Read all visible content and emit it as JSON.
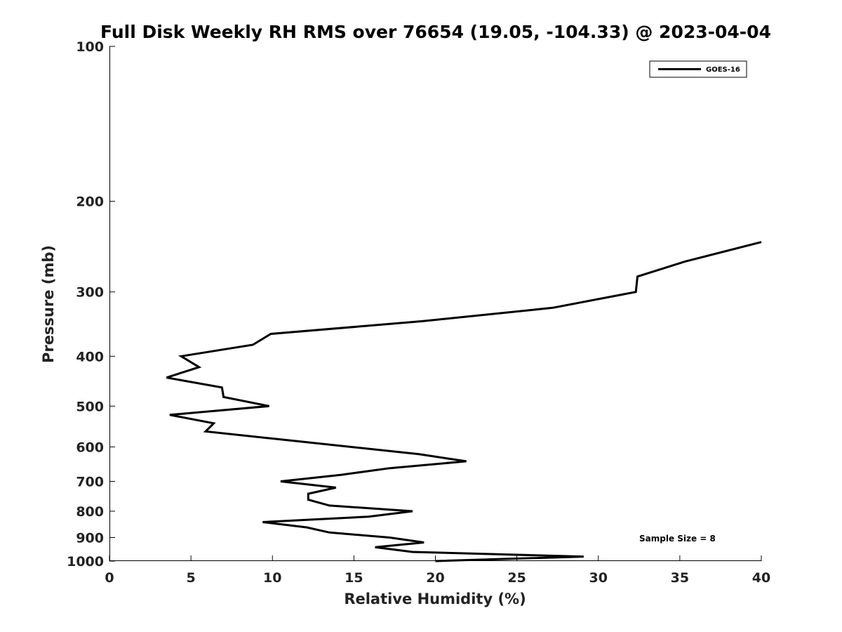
{
  "chart_data": {
    "type": "line",
    "title": "Full Disk Weekly RH RMS over 76654 (19.05, -104.33) @ 2023-04-04",
    "xlabel": "Relative Humidity (%)",
    "ylabel": "Pressure (mb)",
    "xlim": [
      0,
      40
    ],
    "ylim": [
      1000,
      100
    ],
    "yscale": "log",
    "x_ticks": [
      0,
      5,
      10,
      15,
      20,
      25,
      30,
      35,
      40
    ],
    "y_ticks": [
      100,
      200,
      300,
      400,
      500,
      600,
      700,
      800,
      900,
      1000
    ],
    "x_tick_labels": [
      "0",
      "5",
      "10",
      "15",
      "20",
      "25",
      "30",
      "35",
      "40"
    ],
    "y_tick_labels": [
      "100",
      "200",
      "300",
      "400",
      "500",
      "600",
      "700",
      "800",
      "900",
      "1000"
    ],
    "grid": false,
    "legend_position": "top-right",
    "series": [
      {
        "name": "GOES-16",
        "color": "#000000",
        "points": [
          {
            "x": 40.0,
            "p": 240
          },
          {
            "x": 35.3,
            "p": 262
          },
          {
            "x": 32.4,
            "p": 280
          },
          {
            "x": 32.3,
            "p": 300
          },
          {
            "x": 27.2,
            "p": 322
          },
          {
            "x": 19.2,
            "p": 342
          },
          {
            "x": 9.9,
            "p": 362
          },
          {
            "x": 8.8,
            "p": 380
          },
          {
            "x": 4.4,
            "p": 400
          },
          {
            "x": 5.5,
            "p": 420
          },
          {
            "x": 3.5,
            "p": 440
          },
          {
            "x": 6.9,
            "p": 460
          },
          {
            "x": 7.0,
            "p": 480
          },
          {
            "x": 9.8,
            "p": 500
          },
          {
            "x": 3.7,
            "p": 520
          },
          {
            "x": 6.4,
            "p": 540
          },
          {
            "x": 5.9,
            "p": 560
          },
          {
            "x": 10.0,
            "p": 578
          },
          {
            "x": 19.0,
            "p": 620
          },
          {
            "x": 21.9,
            "p": 640
          },
          {
            "x": 17.2,
            "p": 660
          },
          {
            "x": 14.2,
            "p": 680
          },
          {
            "x": 10.5,
            "p": 700
          },
          {
            "x": 13.9,
            "p": 720
          },
          {
            "x": 12.2,
            "p": 740
          },
          {
            "x": 12.2,
            "p": 760
          },
          {
            "x": 13.5,
            "p": 780
          },
          {
            "x": 18.6,
            "p": 800
          },
          {
            "x": 15.9,
            "p": 820
          },
          {
            "x": 9.4,
            "p": 840
          },
          {
            "x": 12.1,
            "p": 860
          },
          {
            "x": 13.5,
            "p": 880
          },
          {
            "x": 17.2,
            "p": 900
          },
          {
            "x": 19.3,
            "p": 920
          },
          {
            "x": 16.3,
            "p": 940
          },
          {
            "x": 18.6,
            "p": 960
          },
          {
            "x": 29.1,
            "p": 980
          },
          {
            "x": 20.0,
            "p": 1000
          }
        ]
      }
    ],
    "annotations": [
      {
        "text": "Sample Size = 8",
        "position": "bottom-right"
      }
    ]
  }
}
